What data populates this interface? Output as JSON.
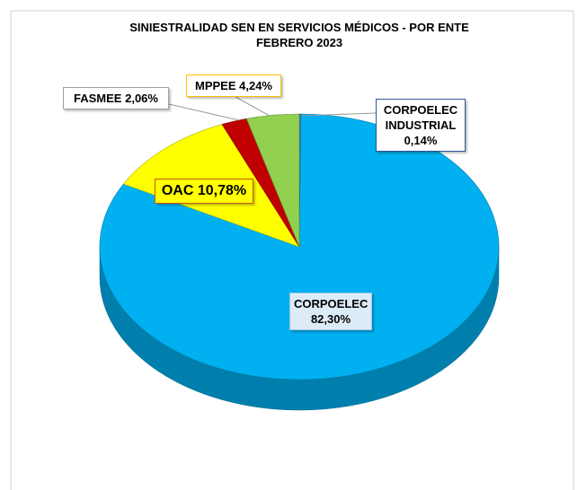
{
  "chart_data": {
    "type": "pie",
    "title": "SINIESTRALIDAD SEN EN SERVICIOS MÉDICOS - POR ENTE",
    "subtitle": "FEBRERO 2023",
    "categories": [
      "CORPOELEC INDUSTRIAL",
      "CORPOELEC",
      "OAC",
      "FASMEE",
      "MPPEE"
    ],
    "values": [
      0.14,
      82.3,
      10.78,
      2.06,
      4.24
    ],
    "value_labels": [
      "0,14%",
      "82,30%",
      "10,78%",
      "2,06%",
      "4,24%"
    ],
    "colors": [
      "#4472c4",
      "#00b0f0",
      "#ffff00",
      "#c00000",
      "#92d050"
    ]
  }
}
